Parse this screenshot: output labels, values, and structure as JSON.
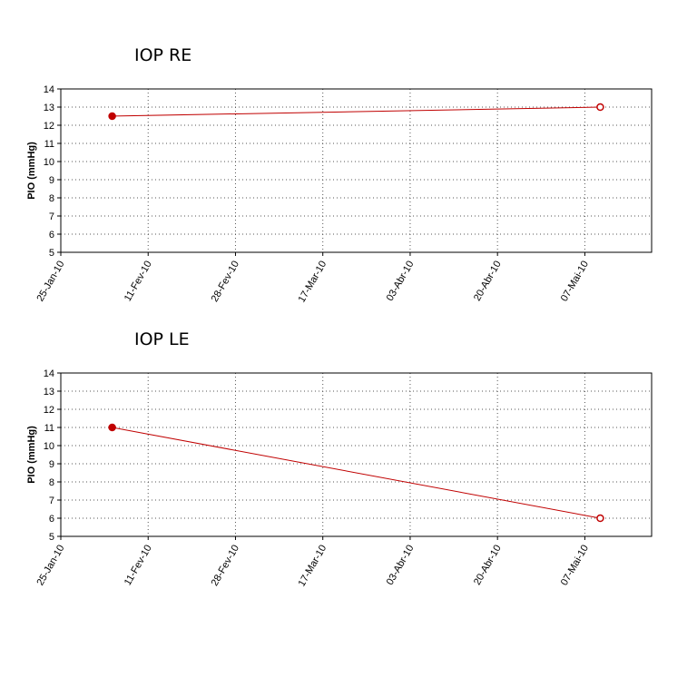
{
  "chart_data": [
    {
      "type": "line",
      "title": "IOP RE",
      "y_label": "PIO (mmHg)",
      "x": [
        "2010-02-04",
        "2010-05-10"
      ],
      "series": [
        {
          "name": "IOP RE",
          "color": "#c00000",
          "values": [
            12.5,
            13.0
          ]
        }
      ],
      "xlim": [
        "2010-01-25",
        "2010-05-20"
      ],
      "xticks": [
        {
          "value": "2010-01-25",
          "label": "25-Jan-10"
        },
        {
          "value": "2010-02-11",
          "label": "11-Fev-10"
        },
        {
          "value": "2010-02-28",
          "label": "28-Fev-10"
        },
        {
          "value": "2010-03-17",
          "label": "17-Mar-10"
        },
        {
          "value": "2010-04-03",
          "label": "03-Abr-10"
        },
        {
          "value": "2010-04-20",
          "label": "20-Abr-10"
        },
        {
          "value": "2010-05-07",
          "label": "07-Mai-10"
        }
      ],
      "ylim": [
        5,
        14
      ],
      "yticks": [
        5,
        6,
        7,
        8,
        9,
        10,
        11,
        12,
        13,
        14
      ],
      "grid": true
    },
    {
      "type": "line",
      "title": "IOP LE",
      "y_label": "PIO (mmHg)",
      "x": [
        "2010-02-04",
        "2010-05-10"
      ],
      "series": [
        {
          "name": "IOP LE",
          "color": "#c00000",
          "values": [
            11.0,
            6.0
          ]
        }
      ],
      "xlim": [
        "2010-01-25",
        "2010-05-20"
      ],
      "xticks": [
        {
          "value": "2010-01-25",
          "label": "25-Jan-10"
        },
        {
          "value": "2010-02-11",
          "label": "11-Fev-10"
        },
        {
          "value": "2010-02-28",
          "label": "28-Fev-10"
        },
        {
          "value": "2010-03-17",
          "label": "17-Mar-10"
        },
        {
          "value": "2010-04-03",
          "label": "03-Abr-10"
        },
        {
          "value": "2010-04-20",
          "label": "20-Abr-10"
        },
        {
          "value": "2010-05-07",
          "label": "07-Mai-10"
        }
      ],
      "ylim": [
        5,
        14
      ],
      "yticks": [
        5,
        6,
        7,
        8,
        9,
        10,
        11,
        12,
        13,
        14
      ],
      "grid": true
    }
  ]
}
